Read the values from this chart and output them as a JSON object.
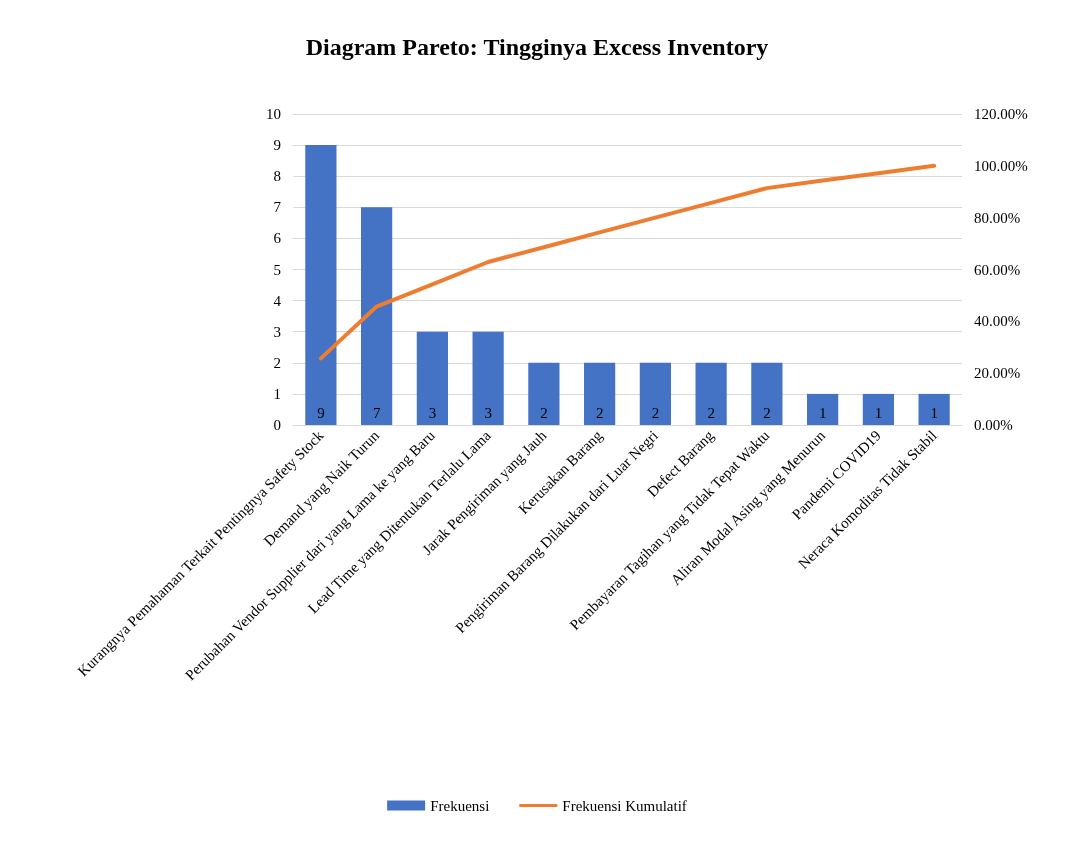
{
  "chart_data": {
    "type": "bar",
    "title": "Diagram Pareto: Tingginya Excess Inventory",
    "categories": [
      "Kurangnya Pemahaman Terkait Pentingnya Safety Stock",
      "Demand yang Naik Turun",
      "Perubahan Vendor Supplier dari yang Lama ke yang Baru",
      "Lead Time yang Ditentukan Terlalu Lama",
      "Jarak Pengiriman yang Jauh",
      "Kerusakan Barang",
      "Pengiriman Barang Dilakukan dari Luar Negri",
      "Defect Barang",
      "Pembayaran Tagihan yang Tidak Tepat Waktu",
      "Aliran Modal Asing yang Menurun",
      "Pandemi COVID19",
      "Neraca Komoditas Tidak Stabil"
    ],
    "series": [
      {
        "name": "Frekuensi",
        "color": "#4472c4",
        "values": [
          9,
          7,
          3,
          3,
          2,
          2,
          2,
          2,
          2,
          1,
          1,
          1
        ],
        "value_labels": [
          "9",
          "7",
          "3",
          "3",
          "2",
          "2",
          "2",
          "2",
          "2",
          "1",
          "1",
          "1"
        ]
      },
      {
        "name": "Frekuensi Kumulatif",
        "type": "line",
        "axis": "y2",
        "color": "#ed7d31",
        "values": [
          25.7,
          45.7,
          54.3,
          62.9,
          68.6,
          74.3,
          80,
          85.7,
          91.4,
          94.3,
          97.1,
          100
        ]
      }
    ],
    "ylim": [
      0,
      10
    ],
    "yticks": [
      0,
      1,
      2,
      3,
      4,
      5,
      6,
      7,
      8,
      9,
      10
    ],
    "y2lim": [
      0,
      120
    ],
    "y2ticks": [
      {
        "value": 0,
        "label": "0.00%"
      },
      {
        "value": 20,
        "label": "20.00%"
      },
      {
        "value": 40,
        "label": "40.00%"
      },
      {
        "value": 60,
        "label": "60.00%"
      },
      {
        "value": 80,
        "label": "80.00%"
      },
      {
        "value": 100,
        "label": "100.00%"
      },
      {
        "value": 120,
        "label": "120.00%"
      }
    ],
    "grid": "y",
    "legend": "bottom",
    "marker": "none",
    "line_style": "solid"
  }
}
